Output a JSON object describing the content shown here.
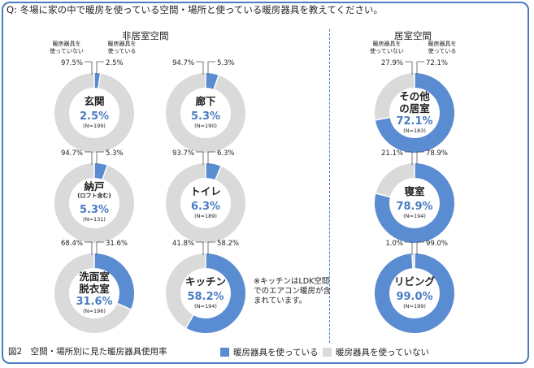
{
  "question": "Q: 冬場に家の中で暖房を使っている空間・場所と使っている暖房器具を教えてください。",
  "sections": {
    "non_living": "非居室空間",
    "living": "居室空間"
  },
  "note": "※キッチンはLDK空間でのエアコン暖房が含まれています。",
  "caption": "図2　空間・場所別に見た暖房器具使用率",
  "legend": {
    "using": "暖房器具を使っている",
    "not_using": "暖房器具を使っていない"
  },
  "colors": {
    "using": "#5a8cd2",
    "not_using": "#dadada",
    "frame": "#4a7cc0",
    "text_accent": "#4a7cc0"
  },
  "chart_data": {
    "type": "pie",
    "title": "空間・場所別に見た暖房器具使用率",
    "series_labels": [
      "暖房器具を使っている",
      "暖房器具を使っていない"
    ],
    "percent_unit": "%",
    "header_labels": {
      "not_using": "暖房器具を\n使っていない",
      "using": "暖房器具を\n使っている"
    },
    "charts": [
      {
        "id": "genkan",
        "group": "非居室空間",
        "label": "玄関",
        "label_lines": [
          "玄関"
        ],
        "using": 2.5,
        "not_using": 97.5,
        "using_text": "2.5%",
        "n": "(N=199)",
        "show_header": true
      },
      {
        "id": "rouka",
        "group": "非居室空間",
        "label": "廊下",
        "label_lines": [
          "廊下"
        ],
        "using": 5.3,
        "not_using": 94.7,
        "using_text": "5.3%",
        "n": "(N=190)",
        "show_header": false
      },
      {
        "id": "nando",
        "group": "非居室空間",
        "label": "納戸(ロフト含む)",
        "label_lines": [
          "納戸",
          "(ロフト含む)"
        ],
        "using": 5.3,
        "not_using": 94.7,
        "using_text": "5.3%",
        "n": "(N=131)",
        "show_header": false
      },
      {
        "id": "toilet",
        "group": "非居室空間",
        "label": "トイレ",
        "label_lines": [
          "トイレ"
        ],
        "using": 6.3,
        "not_using": 93.7,
        "using_text": "6.3%",
        "n": "(N=189)",
        "show_header": false
      },
      {
        "id": "senmen",
        "group": "非居室空間",
        "label": "洗面室脱衣室",
        "label_lines": [
          "洗面室",
          "脱衣室"
        ],
        "using": 31.6,
        "not_using": 68.4,
        "using_text": "31.6%",
        "n": "(N=196)",
        "show_header": false
      },
      {
        "id": "kitchen",
        "group": "非居室空間",
        "label": "キッチン",
        "label_lines": [
          "キッチン"
        ],
        "using": 58.2,
        "not_using": 41.8,
        "using_text": "58.2%",
        "n": "(N=194)",
        "show_header": false
      },
      {
        "id": "other",
        "group": "居室空間",
        "label": "その他の居室",
        "label_lines": [
          "その他",
          "の居室"
        ],
        "using": 72.1,
        "not_using": 27.9,
        "using_text": "72.1%",
        "n": "(N=183)",
        "show_header": true
      },
      {
        "id": "shinshitsu",
        "group": "居室空間",
        "label": "寝室",
        "label_lines": [
          "寝室"
        ],
        "using": 78.9,
        "not_using": 21.1,
        "using_text": "78.9%",
        "n": "(N=194)",
        "show_header": false
      },
      {
        "id": "living",
        "group": "居室空間",
        "label": "リビング",
        "label_lines": [
          "リビング"
        ],
        "using": 99.0,
        "not_using": 1.0,
        "using_text": "99.0%",
        "n": "(N=199)",
        "show_header": false
      }
    ]
  }
}
